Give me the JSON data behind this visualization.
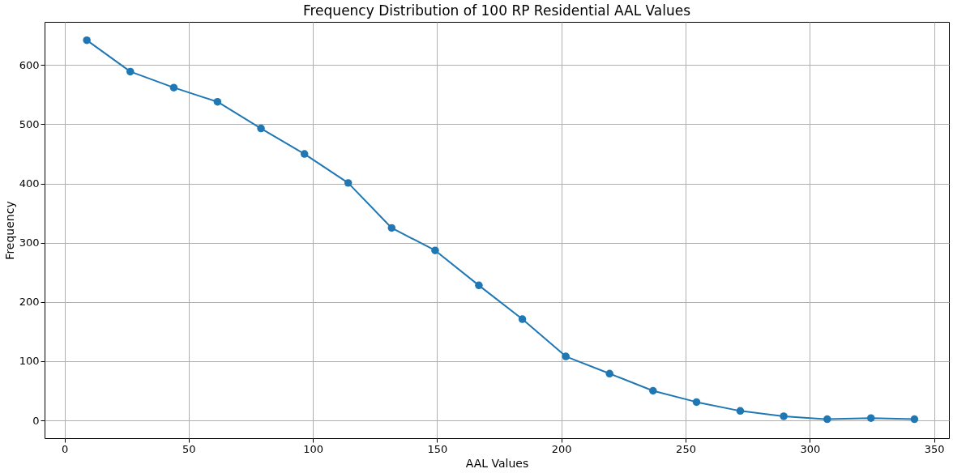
{
  "chart_data": {
    "type": "line",
    "title": "Frequency Distribution of 100 RP Residential AAL Values",
    "xlabel": "AAL Values",
    "ylabel": "Frequency",
    "x": [
      9.0,
      26.5,
      44.0,
      61.6,
      79.1,
      96.6,
      114.2,
      131.7,
      149.2,
      166.8,
      184.3,
      201.8,
      219.4,
      236.9,
      254.4,
      272.0,
      289.5,
      307.0,
      324.6,
      342.1
    ],
    "series": [
      {
        "color": "#1f77b4",
        "values": [
          642,
          589,
          562,
          538,
          493,
          450,
          401,
          325,
          287,
          228,
          171,
          108,
          79,
          50,
          31,
          16,
          7,
          2,
          4,
          2
        ]
      }
    ],
    "xlim": [
      -8,
      356
    ],
    "ylim": [
      -30,
      673
    ],
    "xticks": [
      0,
      50,
      100,
      150,
      200,
      250,
      300,
      350
    ],
    "yticks": [
      0,
      100,
      200,
      300,
      400,
      500,
      600
    ],
    "grid": true,
    "marker": "circle",
    "line_style": "solid"
  }
}
